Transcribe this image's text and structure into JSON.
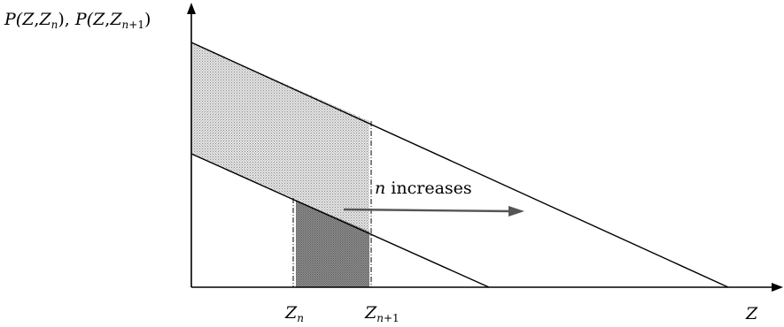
{
  "labels": {
    "y_axis": {
      "p1": "P(",
      "z1": "Z",
      "c1": ",",
      "z2": "Z",
      "n1": "n",
      "p1close": "), ",
      "p2": "P(",
      "z3": "Z",
      "c2": ",",
      "z4": "Z",
      "n2": "n",
      "plus1": "+1",
      "p2close": ")"
    },
    "x_axis": "Z",
    "zn": {
      "z": "Z",
      "sub": "n"
    },
    "zn1": {
      "z": "Z",
      "sub_n": "n",
      "sub_plus": "+1"
    },
    "arrow": {
      "n": "n",
      "text": " increases"
    }
  },
  "colors": {
    "light_shade": "#d2d2d2",
    "dark_shade": "#8c8c8c",
    "line": "#000000"
  }
}
